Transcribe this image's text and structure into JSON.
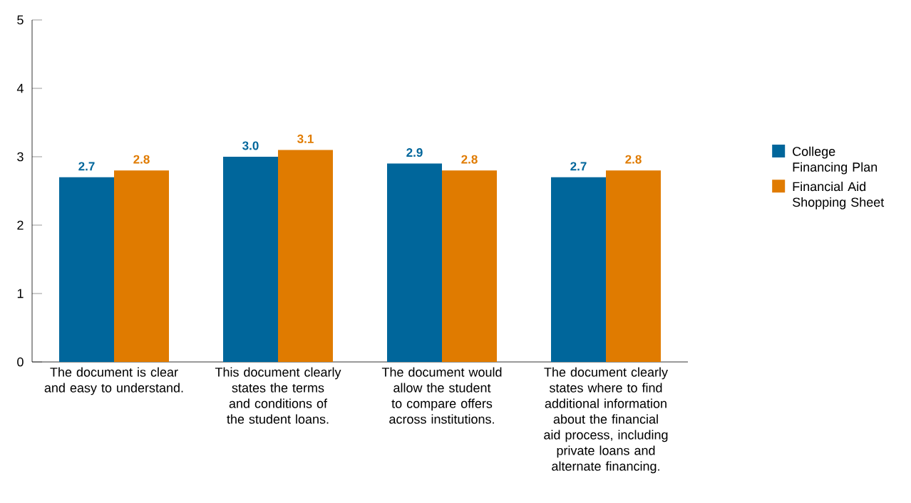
{
  "chart_data": {
    "type": "bar",
    "categories": [
      "The document is clear and easy to understand.",
      "This document clearly states the terms and conditions of the student loans.",
      "The document would allow the student to compare offers across institutions.",
      "The document clearly states where to find additional information about the financial aid process, including private loans and alternate financing."
    ],
    "series": [
      {
        "name": "College Financing Plan",
        "color": "#00669b",
        "values": [
          2.7,
          3.0,
          2.9,
          2.7
        ],
        "value_labels": [
          "2.7",
          "3.0",
          "2.9",
          "2.7"
        ]
      },
      {
        "name": "Financial Aid Shopping Sheet",
        "color": "#e07b00",
        "values": [
          2.8,
          3.1,
          2.8,
          2.8
        ],
        "value_labels": [
          "2.8",
          "3.1",
          "2.8",
          "2.8"
        ]
      }
    ],
    "ylim": [
      0,
      5
    ],
    "yticks": [
      0,
      1,
      2,
      3,
      4,
      5
    ],
    "legend": "right"
  }
}
